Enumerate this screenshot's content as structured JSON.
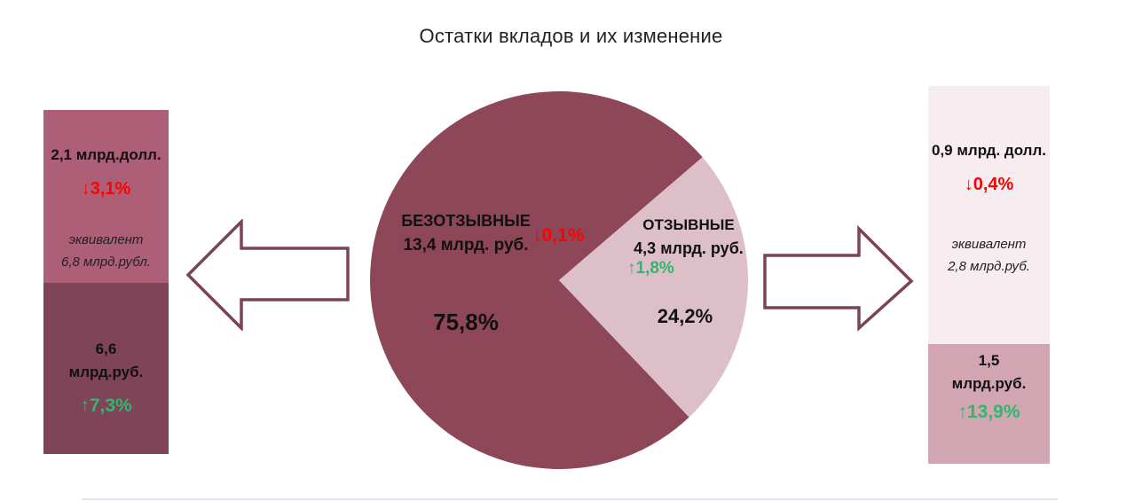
{
  "title": "Остатки вкладов и их изменение",
  "colors": {
    "dark_slice": "#8e4758",
    "light_slice": "#ddbfc9",
    "left_top_block": "#ad5f77",
    "left_bottom_block": "#7f4457",
    "right_top_block": "#f7ecef",
    "right_bottom_block": "#d2a5b2",
    "arrow_border": "#7a4356",
    "negative": "#ff0000",
    "positive": "#2eb86b"
  },
  "chart_data": {
    "type": "pie",
    "title": "Остатки вкладов и их изменение",
    "slices": [
      {
        "name": "БЕЗОТЗЫВНЫЕ",
        "amount_label": "13,4 млрд. руб.",
        "change_label": "↓0,1%",
        "change_direction": "down",
        "percent": 75.8,
        "percent_label": "75,8%",
        "color": "#8e4758"
      },
      {
        "name": "ОТЗЫВНЫЕ",
        "amount_label": "4,3 млрд. руб.",
        "change_label": "↑1,8%",
        "change_direction": "up",
        "percent": 24.2,
        "percent_label": "24,2%",
        "color": "#ddbfc9"
      }
    ],
    "layout": {
      "start_angle_deg": 46.5,
      "radius_px": 213,
      "legend": false,
      "labels_inside": true
    }
  },
  "left_panel": {
    "top": {
      "amount": "2,1 млрд.долл.",
      "change": "↓3,1%",
      "change_direction": "down",
      "equiv_line1": "эквивалент",
      "equiv_line2": "6,8 млрд.рубл."
    },
    "bottom": {
      "amount_line1": "6,6",
      "amount_line2": "млрд.руб.",
      "change": "↑7,3%",
      "change_direction": "up"
    }
  },
  "right_panel": {
    "top": {
      "amount": "0,9 млрд. долл.",
      "change": "↓0,4%",
      "change_direction": "down",
      "equiv_line1": "эквивалент",
      "equiv_line2": "2,8 млрд.руб."
    },
    "bottom": {
      "amount_line1": "1,5",
      "amount_line2": "млрд.руб.",
      "change": "↑13,9%",
      "change_direction": "up"
    }
  }
}
